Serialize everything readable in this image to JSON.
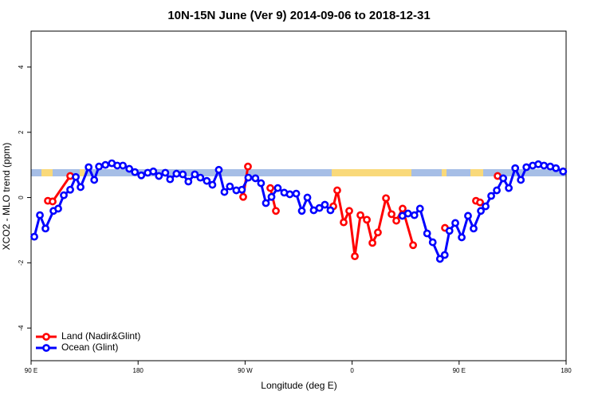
{
  "chart_data": {
    "type": "line",
    "title": "10N-15N June (Ver 9)   2014-09-06 to 2018-12-31",
    "x_label": "Longitude (deg E)",
    "y_label": "XCO2 - MLO trend (ppm)",
    "xlim": [
      90,
      540
    ],
    "ylim": [
      -5,
      5.1
    ],
    "xticks": [
      {
        "value": 90,
        "label": "90 E"
      },
      {
        "value": 180,
        "label": "180"
      },
      {
        "value": 270,
        "label": "90 W"
      },
      {
        "value": 360,
        "label": "0"
      },
      {
        "value": 450,
        "label": "90 E"
      },
      {
        "value": 540,
        "label": "180"
      }
    ],
    "yticks": [
      -4,
      -2,
      0,
      2,
      4
    ],
    "legend": "bottom-left",
    "series": [
      {
        "name": "Land (Nadir&Glint)",
        "color": "#ff0000",
        "x": [
          104.1,
          108.1,
          122.9,
          null,
          268.4,
          272.4,
          null,
          291.2,
          295.9,
          null,
          344.2,
          347.5,
          352.9,
          357.6,
          362.3,
          367.0,
          372.4,
          377.1,
          381.7,
          388.5,
          393.2,
          397.2,
          402.5,
          411.3,
          null,
          438.1,
          null,
          464.2,
          467.6,
          null,
          482.4
        ],
        "values": [
          -0.1,
          -0.12,
          0.66,
          null,
          0.02,
          0.95,
          null,
          0.29,
          -0.41,
          null,
          -0.27,
          0.22,
          -0.76,
          -0.41,
          -1.8,
          -0.54,
          -0.68,
          -1.39,
          -1.07,
          -0.02,
          -0.51,
          -0.71,
          -0.34,
          -1.46,
          null,
          -0.93,
          null,
          -0.1,
          -0.15,
          null,
          0.66
        ]
      },
      {
        "name": "Ocean (Glint)",
        "color": "#0000ff",
        "x": [
          92.7,
          97.4,
          102.1,
          108.8,
          112.8,
          117.5,
          122.9,
          127.6,
          131.6,
          138.4,
          143.1,
          147.1,
          152.5,
          157.9,
          162.5,
          167.2,
          172.6,
          177.3,
          182.7,
          188.1,
          192.8,
          197.5,
          202.9,
          206.9,
          212.3,
          217.6,
          222.3,
          227.7,
          232.4,
          237.8,
          242.5,
          247.9,
          252.6,
          257.2,
          262.6,
          267.3,
          272.7,
          278.7,
          283.4,
          287.5,
          292.2,
          297.5,
          302.9,
          307.6,
          313.0,
          317.7,
          322.4,
          327.7,
          332.5,
          337.1,
          341.8,
          null,
          402.3,
          407.0,
          412.4,
          417.1,
          423.1,
          427.8,
          433.9,
          437.9,
          441.9,
          446.8,
          452.2,
          457.5,
          462.2,
          468.3,
          472.3,
          477.0,
          481.7,
          487.1,
          491.8,
          497.2,
          501.9,
          506.6,
          511.9,
          516.6,
          521.4,
          526.7,
          531.4,
          537.5
        ],
        "values": [
          -1.2,
          -0.54,
          -0.95,
          -0.41,
          -0.34,
          0.07,
          0.24,
          0.63,
          0.32,
          0.93,
          0.54,
          0.95,
          1.0,
          1.05,
          0.98,
          0.98,
          0.88,
          0.78,
          0.68,
          0.76,
          0.8,
          0.66,
          0.76,
          0.56,
          0.73,
          0.71,
          0.49,
          0.71,
          0.61,
          0.51,
          0.39,
          0.85,
          0.17,
          0.34,
          0.22,
          0.24,
          0.61,
          0.59,
          0.44,
          -0.17,
          0.02,
          0.29,
          0.15,
          0.1,
          0.12,
          -0.41,
          0,
          -0.39,
          -0.32,
          -0.22,
          -0.39,
          null,
          -0.56,
          -0.49,
          -0.54,
          -0.34,
          -1.1,
          -1.37,
          -1.88,
          -1.76,
          -1.02,
          -0.78,
          -1.22,
          -0.56,
          -0.95,
          -0.41,
          -0.27,
          0.05,
          0.22,
          0.59,
          0.29,
          0.9,
          0.54,
          0.93,
          0.98,
          1.02,
          0.98,
          0.95,
          0.9,
          0.8
        ]
      }
    ]
  }
}
